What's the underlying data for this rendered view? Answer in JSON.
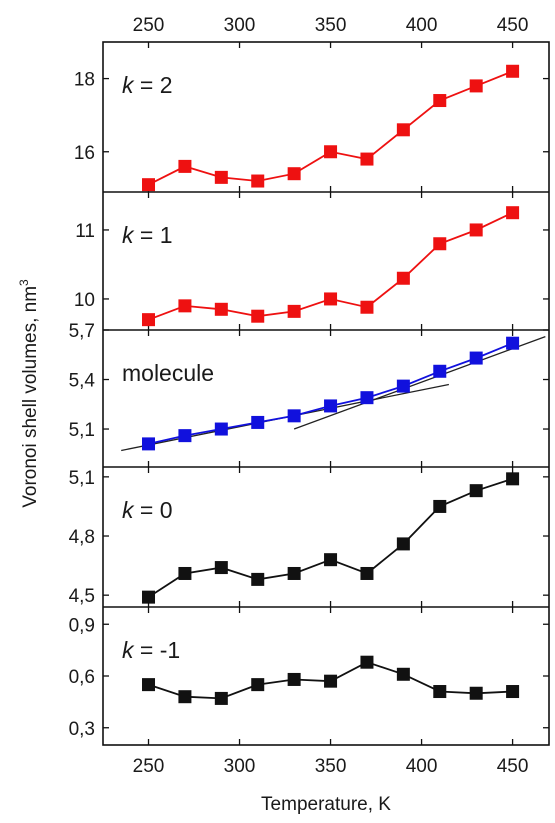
{
  "chart_data": {
    "type": "line",
    "xlabel": "Temperature, K",
    "ylabel": "Voronoi shell volumes, nm",
    "ylabel_superscript": "3",
    "x_ticks": [
      "250",
      "300",
      "350",
      "400",
      "450"
    ],
    "x_tick_values": [
      250,
      300,
      350,
      400,
      450
    ],
    "xlim": [
      225,
      470
    ],
    "x": [
      250,
      270,
      290,
      310,
      330,
      350,
      370,
      390,
      410,
      430,
      450
    ],
    "panels": [
      {
        "label_var": "k",
        "label_rest": " = 2",
        "ylim": [
          14.9,
          19.0
        ],
        "y_ticks": [
          "16",
          "18"
        ],
        "y_tick_values": [
          16,
          18
        ],
        "color": "#ee1111",
        "values": [
          15.1,
          15.6,
          15.3,
          15.2,
          15.4,
          16.0,
          15.8,
          16.6,
          17.4,
          17.8,
          18.2
        ]
      },
      {
        "label_var": "k",
        "label_rest": " = 1",
        "ylim": [
          9.55,
          11.55
        ],
        "y_ticks": [
          "10",
          "11"
        ],
        "y_tick_values": [
          10,
          11
        ],
        "color": "#ee1111",
        "values": [
          9.7,
          9.9,
          9.85,
          9.75,
          9.82,
          10.0,
          9.88,
          10.3,
          10.8,
          11.0,
          11.25
        ]
      },
      {
        "label_var": "",
        "label_rest": "molecule",
        "ylim": [
          4.87,
          5.7
        ],
        "y_ticks": [
          "5,1",
          "5,4",
          "5,7"
        ],
        "y_tick_values": [
          5.1,
          5.4,
          5.7
        ],
        "color": "#1111dd",
        "values": [
          5.01,
          5.06,
          5.1,
          5.14,
          5.18,
          5.24,
          5.29,
          5.36,
          5.45,
          5.53,
          5.62
        ],
        "fit_lines": [
          {
            "x": [
              235,
              415
            ],
            "y": [
              4.97,
              5.37
            ]
          },
          {
            "x": [
              330,
              468
            ],
            "y": [
              5.1,
              5.66
            ]
          }
        ]
      },
      {
        "label_var": "k",
        "label_rest": " = 0",
        "ylim": [
          4.44,
          5.15
        ],
        "y_ticks": [
          "4,5",
          "4,8",
          "5,1"
        ],
        "y_tick_values": [
          4.5,
          4.8,
          5.1
        ],
        "color": "#111111",
        "values": [
          4.49,
          4.61,
          4.64,
          4.58,
          4.61,
          4.68,
          4.61,
          4.76,
          4.95,
          5.03,
          5.09
        ]
      },
      {
        "label_var": "k",
        "label_rest": " = -1",
        "ylim": [
          0.2,
          1.0
        ],
        "y_ticks": [
          "0,3",
          "0,6",
          "0,9"
        ],
        "y_tick_values": [
          0.3,
          0.6,
          0.9
        ],
        "color": "#111111",
        "values": [
          0.55,
          0.48,
          0.47,
          0.55,
          0.58,
          0.57,
          0.68,
          0.61,
          0.51,
          0.5,
          0.51
        ]
      }
    ]
  }
}
